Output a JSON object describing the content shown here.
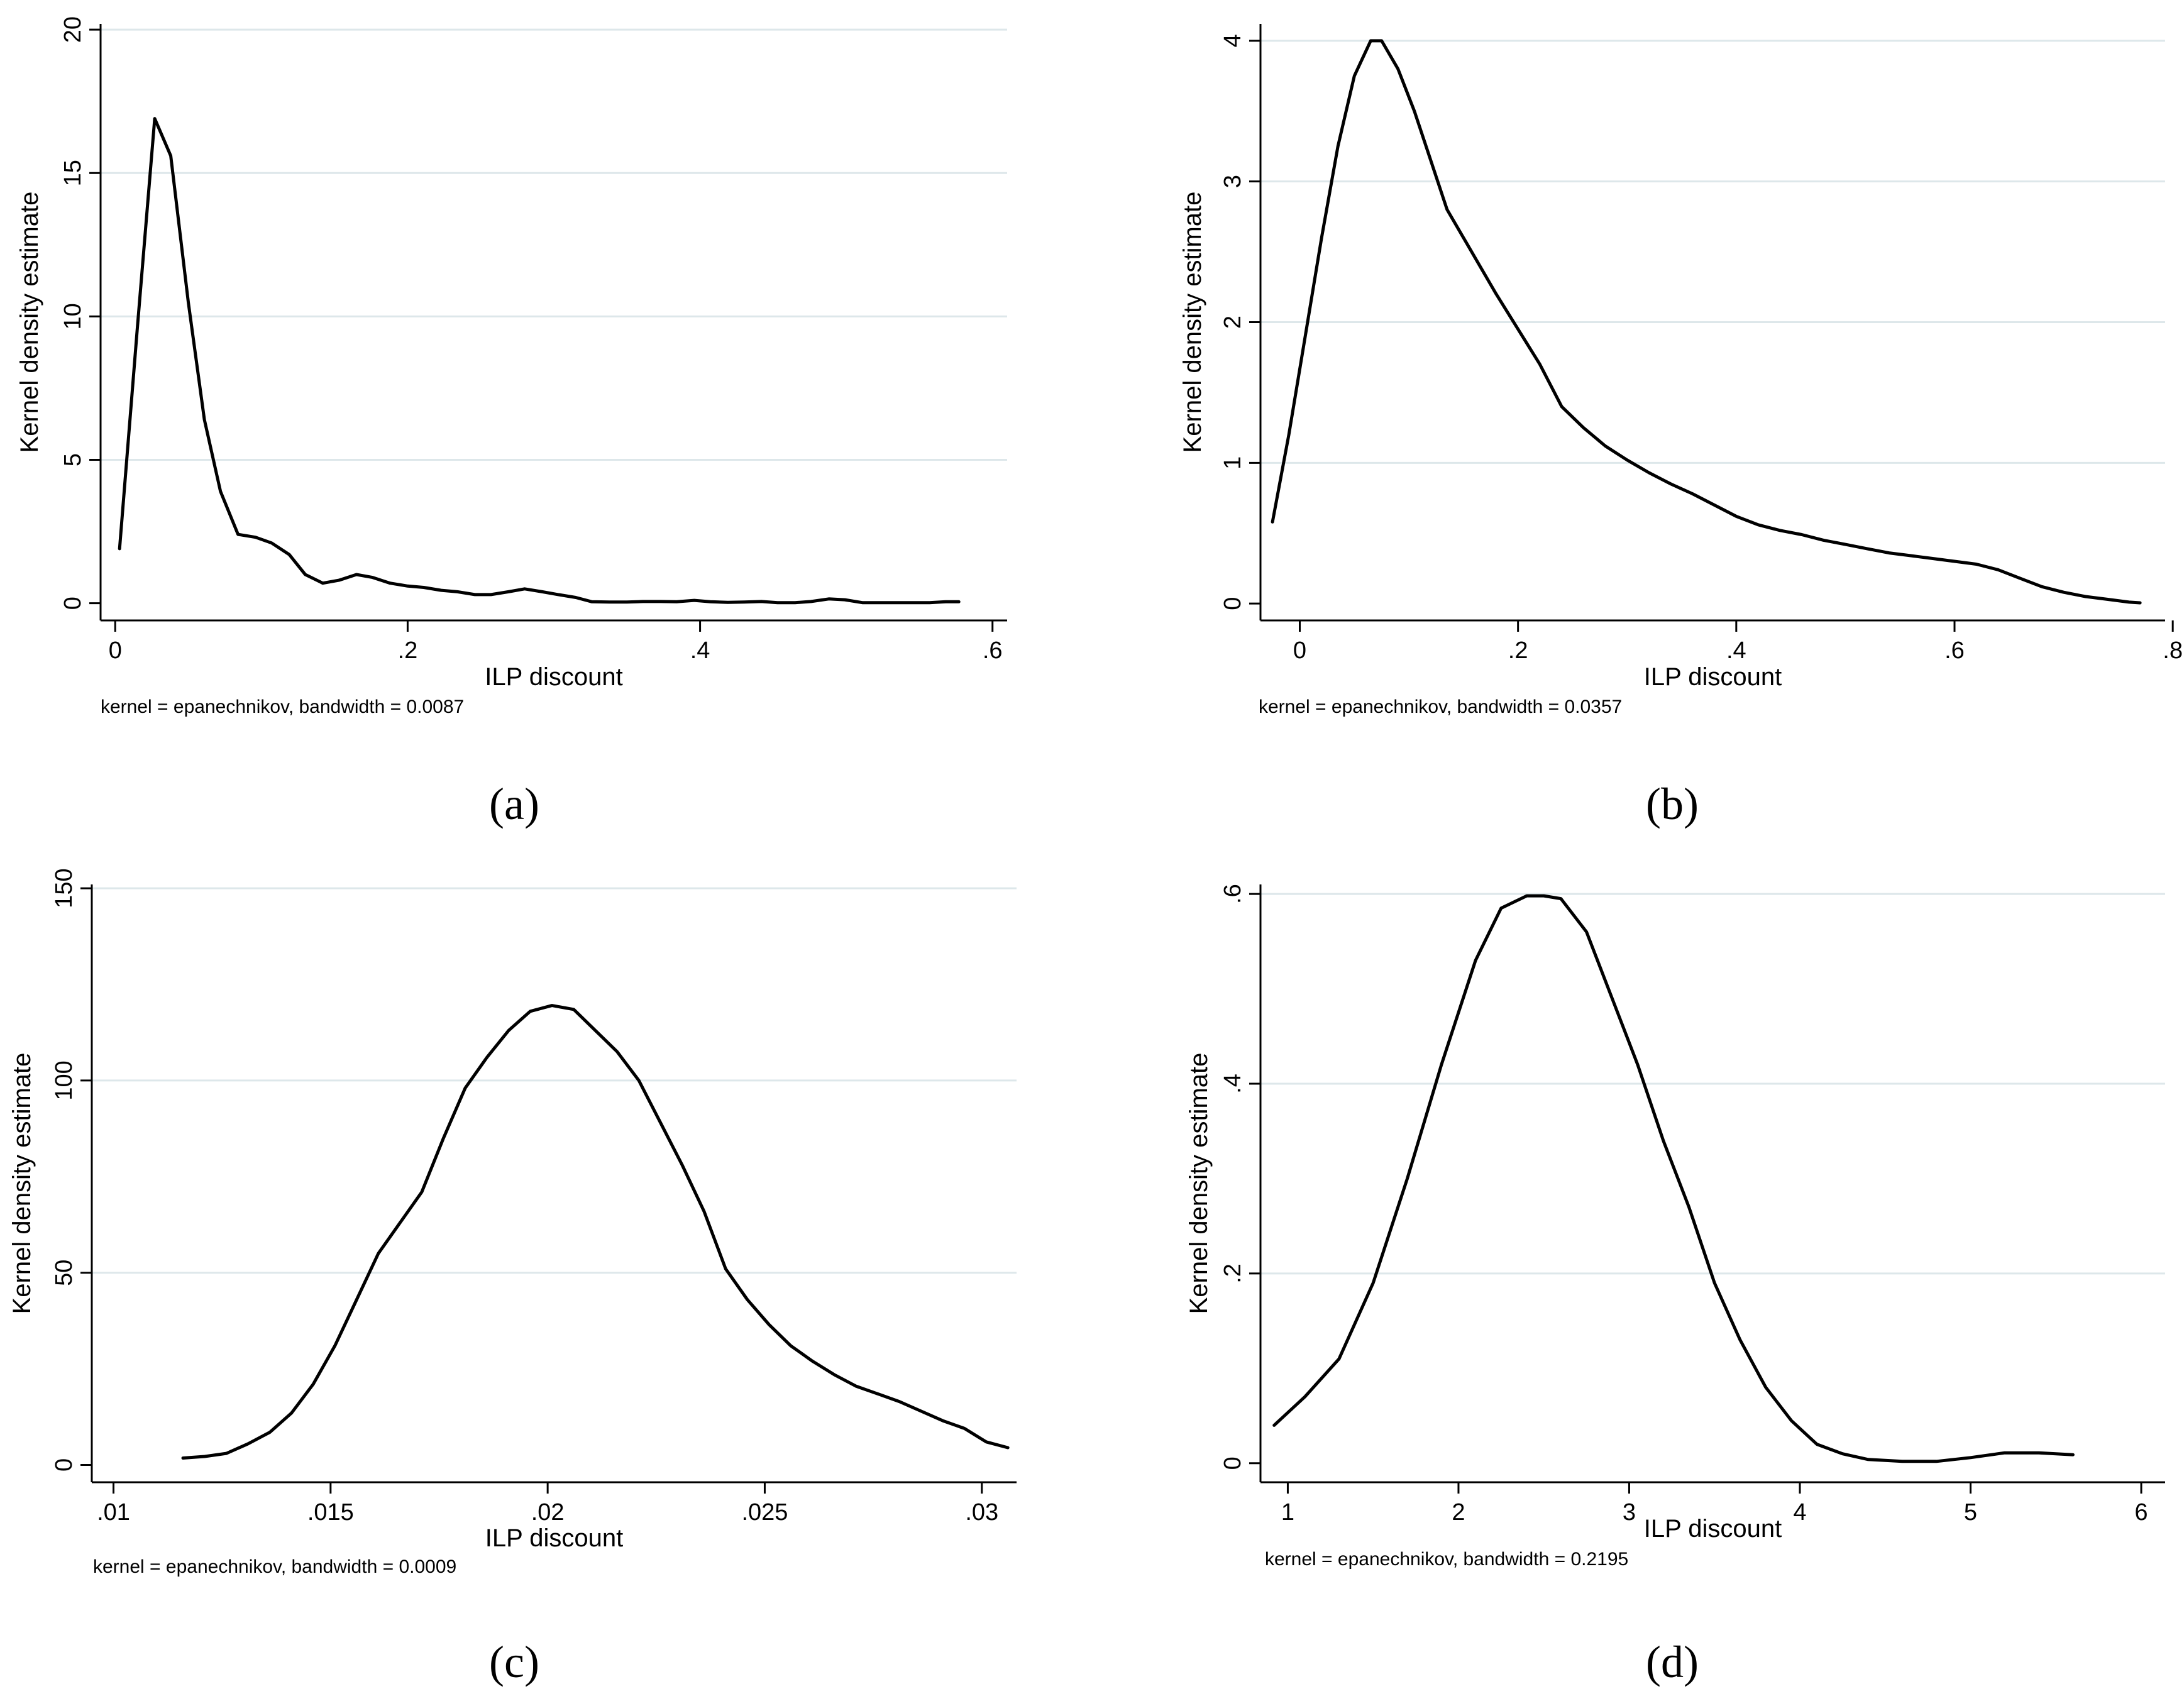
{
  "chart_data": [
    {
      "type": "line",
      "panel": "a",
      "title": "",
      "xlabel": "ILP discount",
      "ylabel": "Kernel density estimate",
      "xlim": [
        -0.01,
        0.61
      ],
      "ylim": [
        -0.6,
        20.2
      ],
      "xticks": [
        0,
        0.2,
        0.4,
        0.6
      ],
      "xtick_labels": [
        "0",
        ".2",
        ".4",
        ".6"
      ],
      "yticks": [
        0,
        5,
        10,
        15,
        20
      ],
      "ytick_labels": [
        "0",
        "5",
        "10",
        "15",
        "20"
      ],
      "grid": true,
      "note": "kernel = epanechnikov, bandwidth = 0.0087",
      "x": [
        0.003,
        0.015,
        0.027,
        0.038,
        0.05,
        0.061,
        0.072,
        0.084,
        0.096,
        0.107,
        0.119,
        0.13,
        0.142,
        0.153,
        0.165,
        0.176,
        0.188,
        0.2,
        0.211,
        0.223,
        0.234,
        0.246,
        0.257,
        0.269,
        0.28,
        0.292,
        0.303,
        0.315,
        0.326,
        0.338,
        0.35,
        0.361,
        0.373,
        0.384,
        0.396,
        0.407,
        0.419,
        0.43,
        0.442,
        0.453,
        0.465,
        0.476,
        0.488,
        0.499,
        0.511,
        0.522,
        0.534,
        0.545,
        0.557,
        0.568,
        0.577
      ],
      "y": [
        1.9,
        9.5,
        16.9,
        15.6,
        10.5,
        6.4,
        3.9,
        2.4,
        2.3,
        2.1,
        1.7,
        1.0,
        0.7,
        0.8,
        1.0,
        0.9,
        0.7,
        0.6,
        0.55,
        0.45,
        0.4,
        0.3,
        0.3,
        0.4,
        0.5,
        0.4,
        0.3,
        0.2,
        0.05,
        0.04,
        0.04,
        0.06,
        0.06,
        0.05,
        0.1,
        0.05,
        0.03,
        0.04,
        0.06,
        0.02,
        0.02,
        0.06,
        0.15,
        0.12,
        0.02,
        0.02,
        0.02,
        0.02,
        0.02,
        0.05,
        0.05
      ]
    },
    {
      "type": "line",
      "panel": "b",
      "title": "",
      "xlabel": "ILP discount",
      "ylabel": "Kernel density estimate",
      "xlim": [
        -0.036,
        0.793
      ],
      "ylim": [
        -0.12,
        4.12
      ],
      "xticks": [
        0,
        0.2,
        0.4,
        0.6,
        0.8
      ],
      "xtick_labels": [
        "0",
        ".2",
        ".4",
        ".6",
        ".8"
      ],
      "yticks": [
        0,
        1,
        2,
        3,
        4
      ],
      "ytick_labels": [
        "0",
        "1",
        "2",
        "3",
        "4"
      ],
      "grid": true,
      "note": "kernel = epanechnikov, bandwidth = 0.0357",
      "x": [
        -0.025,
        -0.01,
        0.005,
        0.02,
        0.035,
        0.05,
        0.065,
        0.075,
        0.09,
        0.105,
        0.12,
        0.135,
        0.15,
        0.165,
        0.18,
        0.2,
        0.22,
        0.24,
        0.26,
        0.28,
        0.3,
        0.32,
        0.34,
        0.36,
        0.38,
        0.4,
        0.42,
        0.44,
        0.46,
        0.48,
        0.5,
        0.52,
        0.54,
        0.56,
        0.58,
        0.6,
        0.62,
        0.64,
        0.66,
        0.68,
        0.7,
        0.72,
        0.74,
        0.76,
        0.77
      ],
      "y": [
        0.58,
        1.2,
        1.9,
        2.6,
        3.25,
        3.75,
        4.0,
        4.0,
        3.8,
        3.5,
        3.15,
        2.8,
        2.6,
        2.4,
        2.2,
        1.95,
        1.7,
        1.4,
        1.25,
        1.12,
        1.02,
        0.93,
        0.85,
        0.78,
        0.7,
        0.62,
        0.56,
        0.52,
        0.49,
        0.45,
        0.42,
        0.39,
        0.36,
        0.34,
        0.32,
        0.3,
        0.28,
        0.24,
        0.18,
        0.12,
        0.08,
        0.05,
        0.03,
        0.01,
        0.005
      ]
    },
    {
      "type": "line",
      "panel": "c",
      "title": "",
      "xlabel": "ILP discount",
      "ylabel": "Kernel density estimate",
      "xlim": [
        0.0095,
        0.0308
      ],
      "ylim": [
        -4.5,
        151
      ],
      "xticks": [
        0.01,
        0.015,
        0.02,
        0.025,
        0.03
      ],
      "xtick_labels": [
        ".01",
        ".015",
        ".02",
        ".025",
        ".03"
      ],
      "yticks": [
        0,
        50,
        100,
        150
      ],
      "ytick_labels": [
        "0",
        "50",
        "100",
        "150"
      ],
      "grid": true,
      "note": "kernel = epanechnikov, bandwidth = 0.0009",
      "x": [
        0.0116,
        0.0121,
        0.0126,
        0.0131,
        0.0136,
        0.0141,
        0.0146,
        0.0151,
        0.0156,
        0.0161,
        0.0166,
        0.0171,
        0.0176,
        0.0181,
        0.0186,
        0.0191,
        0.0196,
        0.0201,
        0.0206,
        0.0211,
        0.0216,
        0.0221,
        0.0226,
        0.0231,
        0.0236,
        0.0241,
        0.0246,
        0.0251,
        0.0256,
        0.0261,
        0.0266,
        0.0271,
        0.0276,
        0.0281,
        0.0286,
        0.0291,
        0.0296,
        0.0301,
        0.0306
      ],
      "y": [
        1.8,
        2.2,
        3.0,
        5.5,
        8.5,
        13.5,
        21.0,
        31.0,
        43.0,
        55.0,
        63.0,
        71.0,
        85.0,
        98.0,
        106.0,
        113.0,
        118.0,
        119.5,
        118.5,
        113.0,
        107.5,
        100.0,
        89.0,
        78.0,
        66.0,
        51.0,
        43.0,
        36.5,
        31.0,
        27.0,
        23.5,
        20.5,
        18.5,
        16.5,
        14.0,
        11.5,
        9.5,
        6.0,
        4.5
      ]
    },
    {
      "type": "line",
      "panel": "d",
      "title": "",
      "xlabel": "ILP discount",
      "ylabel": "Kernel density estimate",
      "xlim": [
        0.84,
        6.14
      ],
      "ylim": [
        -0.02,
        0.61
      ],
      "xticks": [
        1,
        2,
        3,
        4,
        5,
        6
      ],
      "xtick_labels": [
        "1",
        "2",
        "3",
        "4",
        "5",
        "6"
      ],
      "yticks": [
        0,
        0.2,
        0.4,
        0.6
      ],
      "ytick_labels": [
        "0",
        ".2",
        ".4",
        ".6"
      ],
      "grid": true,
      "note": "kernel = epanechnikov, bandwidth = 0.2195",
      "x": [
        0.92,
        1.1,
        1.3,
        1.5,
        1.7,
        1.9,
        2.1,
        2.25,
        2.4,
        2.5,
        2.6,
        2.75,
        2.9,
        3.05,
        3.2,
        3.35,
        3.5,
        3.65,
        3.8,
        3.95,
        4.1,
        4.25,
        4.4,
        4.6,
        4.8,
        5.0,
        5.2,
        5.4,
        5.6
      ],
      "y": [
        0.04,
        0.07,
        0.11,
        0.19,
        0.3,
        0.42,
        0.53,
        0.585,
        0.598,
        0.598,
        0.595,
        0.56,
        0.49,
        0.42,
        0.34,
        0.27,
        0.19,
        0.13,
        0.08,
        0.045,
        0.02,
        0.01,
        0.004,
        0.002,
        0.002,
        0.006,
        0.011,
        0.011,
        0.009
      ]
    }
  ],
  "panel_labels": [
    "(a)",
    "(b)",
    "(c)",
    "(d)"
  ]
}
